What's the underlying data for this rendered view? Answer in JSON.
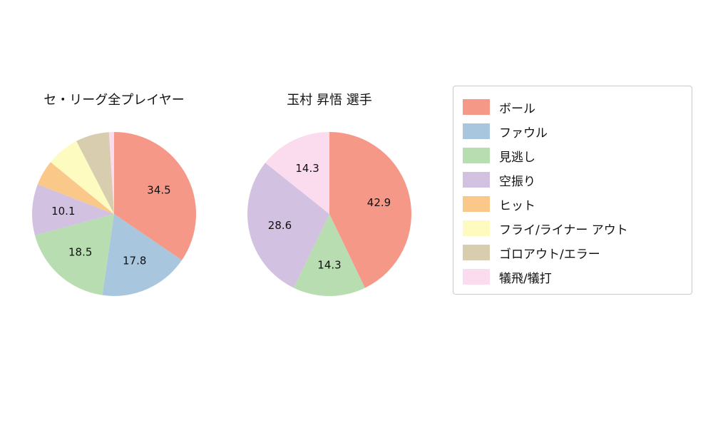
{
  "chart_data": [
    {
      "type": "pie",
      "title": "セ・リーグ全プレイヤー",
      "labels": [
        "ボール",
        "ファウル",
        "見逃し",
        "空振り",
        "ヒット",
        "フライ/ライナー アウト",
        "ゴロアウト/エラー",
        "犠飛/犠打"
      ],
      "values": [
        34.5,
        17.8,
        18.5,
        10.1,
        5.0,
        6.5,
        6.6,
        1.0
      ],
      "data_labels": [
        "34.5",
        "17.8",
        "18.5",
        "10.1",
        "",
        "",
        "",
        ""
      ],
      "colors": [
        "#f69888",
        "#a9c6df",
        "#b7ddb0",
        "#d2c1e0",
        "#fac98a",
        "#fdfbbf",
        "#d8cdaf",
        "#fbdbee"
      ],
      "start_angle": "top",
      "direction": "clockwise",
      "legend_in_chart": false
    },
    {
      "type": "pie",
      "title": "玉村 昇悟 選手",
      "labels": [
        "ボール",
        "見逃し",
        "空振り",
        "犠飛/犠打"
      ],
      "values": [
        42.9,
        14.3,
        28.6,
        14.3
      ],
      "data_labels": [
        "42.9",
        "14.3",
        "28.6",
        "14.3"
      ],
      "colors": [
        "#f69888",
        "#b7ddb0",
        "#d2c1e0",
        "#fbdbee"
      ],
      "start_angle": "top",
      "direction": "clockwise",
      "legend_in_chart": false
    }
  ],
  "legend": {
    "position": "right",
    "items": [
      {
        "label": "ボール",
        "color": "#f69888"
      },
      {
        "label": "ファウル",
        "color": "#a9c6df"
      },
      {
        "label": "見逃し",
        "color": "#b7ddb0"
      },
      {
        "label": "空振り",
        "color": "#d2c1e0"
      },
      {
        "label": "ヒット",
        "color": "#fac98a"
      },
      {
        "label": "フライ/ライナー アウト",
        "color": "#fdfbbf"
      },
      {
        "label": "ゴロアウト/エラー",
        "color": "#d8cdaf"
      },
      {
        "label": "犠飛/犠打",
        "color": "#fbdbee"
      }
    ]
  },
  "style": {
    "background": "#ffffff",
    "label_color": "#111111",
    "legend_border": "#c9c9c9"
  }
}
